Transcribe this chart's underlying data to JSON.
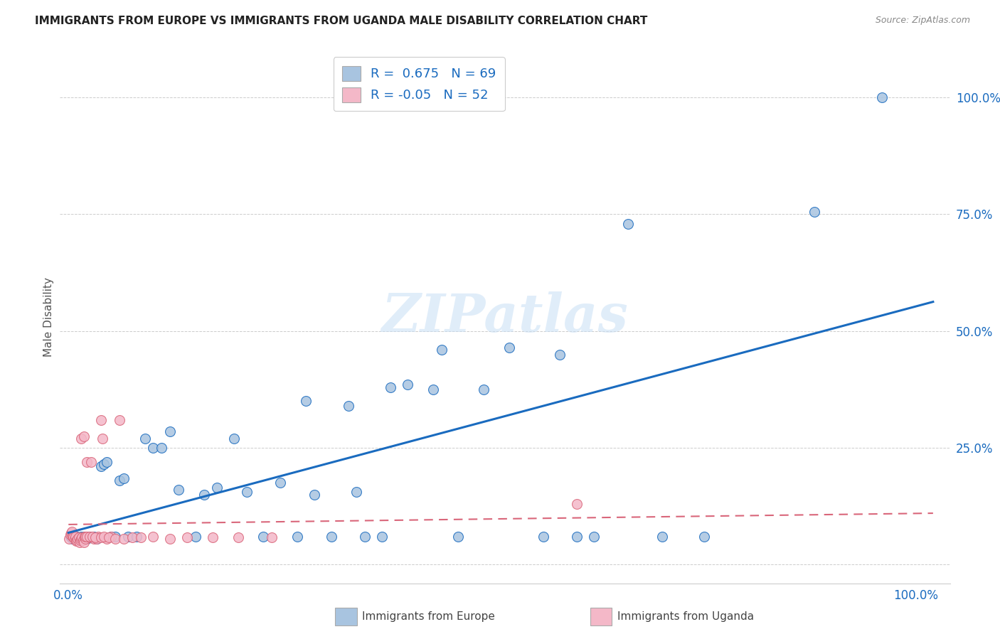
{
  "title": "IMMIGRANTS FROM EUROPE VS IMMIGRANTS FROM UGANDA MALE DISABILITY CORRELATION CHART",
  "source": "Source: ZipAtlas.com",
  "ylabel": "Male Disability",
  "y_ticks": [
    0.0,
    0.25,
    0.5,
    0.75,
    1.0
  ],
  "y_tick_labels": [
    "",
    "25.0%",
    "50.0%",
    "75.0%",
    "100.0%"
  ],
  "legend_europe": "Immigrants from Europe",
  "legend_uganda": "Immigrants from Uganda",
  "R_europe": 0.675,
  "N_europe": 69,
  "R_uganda": -0.05,
  "N_uganda": 52,
  "color_europe": "#a8c4e0",
  "color_uganda": "#f4b8c8",
  "line_color_europe": "#1a6bbf",
  "line_color_uganda": "#d9667a",
  "watermark": "ZIPatlas",
  "europe_x": [
    0.002,
    0.003,
    0.004,
    0.005,
    0.006,
    0.007,
    0.008,
    0.009,
    0.01,
    0.011,
    0.012,
    0.013,
    0.014,
    0.015,
    0.016,
    0.017,
    0.018,
    0.019,
    0.02,
    0.022,
    0.025,
    0.027,
    0.03,
    0.033,
    0.038,
    0.042,
    0.045,
    0.05,
    0.055,
    0.06,
    0.065,
    0.07,
    0.08,
    0.09,
    0.1,
    0.11,
    0.12,
    0.13,
    0.15,
    0.16,
    0.175,
    0.195,
    0.21,
    0.23,
    0.25,
    0.27,
    0.29,
    0.31,
    0.33,
    0.35,
    0.37,
    0.4,
    0.43,
    0.46,
    0.49,
    0.52,
    0.56,
    0.6,
    0.28,
    0.34,
    0.38,
    0.44,
    0.58,
    0.62,
    0.66,
    0.7,
    0.75,
    0.88,
    0.96
  ],
  "europe_y": [
    0.06,
    0.058,
    0.062,
    0.055,
    0.06,
    0.057,
    0.058,
    0.055,
    0.06,
    0.055,
    0.058,
    0.052,
    0.055,
    0.06,
    0.057,
    0.058,
    0.055,
    0.06,
    0.058,
    0.055,
    0.06,
    0.058,
    0.06,
    0.055,
    0.21,
    0.215,
    0.22,
    0.06,
    0.06,
    0.18,
    0.185,
    0.06,
    0.06,
    0.27,
    0.25,
    0.25,
    0.285,
    0.16,
    0.06,
    0.15,
    0.165,
    0.27,
    0.155,
    0.06,
    0.175,
    0.06,
    0.15,
    0.06,
    0.34,
    0.06,
    0.06,
    0.385,
    0.375,
    0.06,
    0.375,
    0.465,
    0.06,
    0.06,
    0.35,
    0.155,
    0.38,
    0.46,
    0.45,
    0.06,
    0.73,
    0.06,
    0.06,
    0.755,
    1.0
  ],
  "uganda_x": [
    0.001,
    0.002,
    0.003,
    0.004,
    0.005,
    0.006,
    0.007,
    0.008,
    0.009,
    0.01,
    0.011,
    0.012,
    0.013,
    0.014,
    0.015,
    0.016,
    0.017,
    0.018,
    0.019,
    0.02,
    0.022,
    0.025,
    0.027,
    0.03,
    0.033,
    0.035,
    0.04,
    0.045,
    0.05,
    0.06,
    0.015,
    0.018,
    0.02,
    0.022,
    0.025,
    0.028,
    0.032,
    0.038,
    0.042,
    0.048,
    0.055,
    0.065,
    0.075,
    0.085,
    0.1,
    0.12,
    0.14,
    0.17,
    0.2,
    0.24,
    0.6,
    0.038
  ],
  "uganda_y": [
    0.055,
    0.065,
    0.068,
    0.07,
    0.06,
    0.058,
    0.055,
    0.06,
    0.05,
    0.052,
    0.055,
    0.058,
    0.048,
    0.052,
    0.055,
    0.058,
    0.052,
    0.048,
    0.06,
    0.055,
    0.22,
    0.058,
    0.22,
    0.055,
    0.055,
    0.06,
    0.27,
    0.055,
    0.06,
    0.31,
    0.27,
    0.275,
    0.06,
    0.06,
    0.06,
    0.06,
    0.058,
    0.058,
    0.06,
    0.058,
    0.055,
    0.055,
    0.058,
    0.058,
    0.06,
    0.055,
    0.058,
    0.058,
    0.058,
    0.058,
    0.13,
    0.31
  ]
}
